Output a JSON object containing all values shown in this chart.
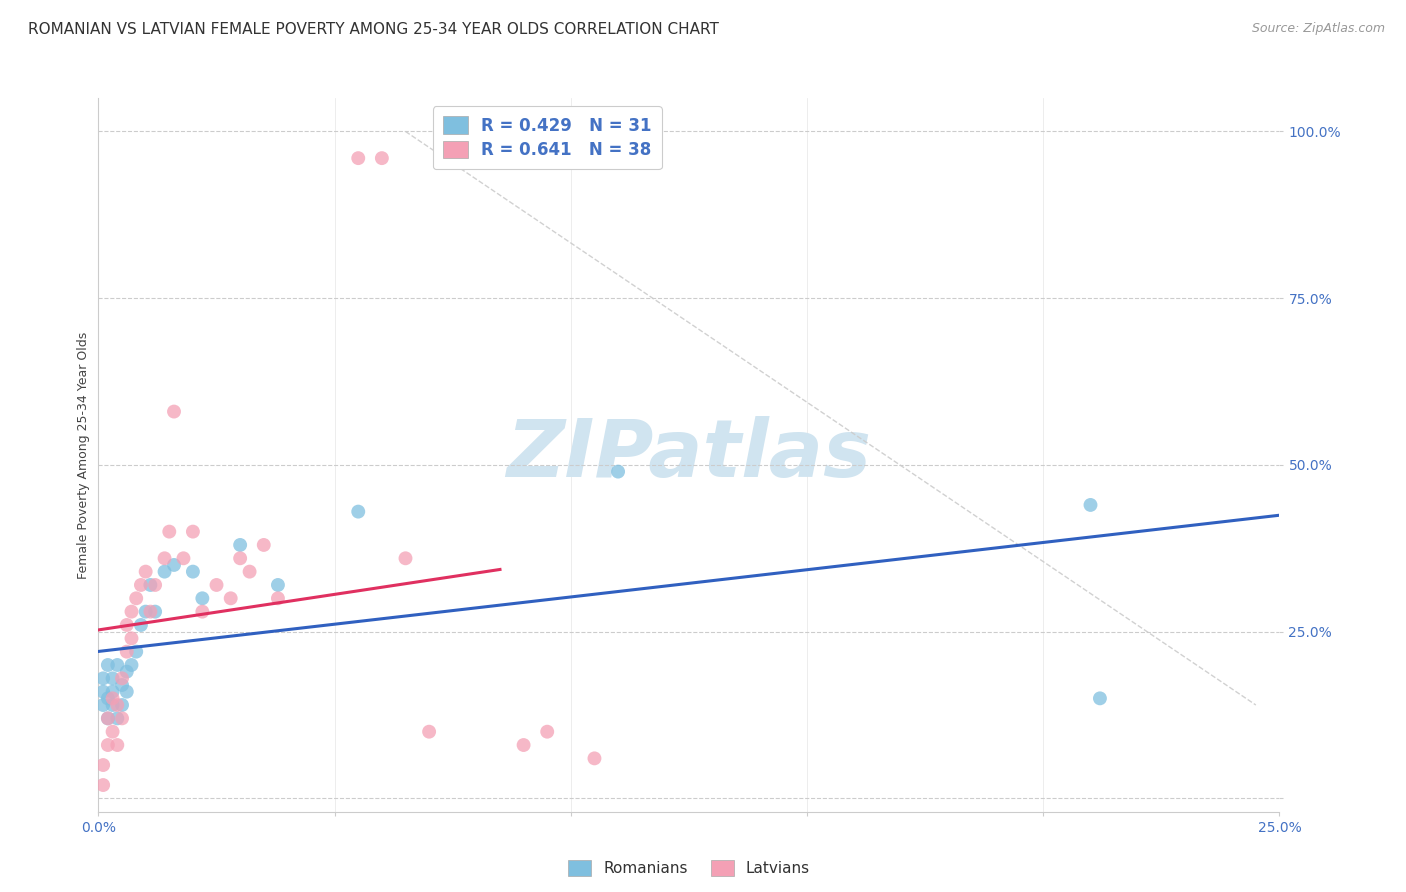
{
  "title": "ROMANIAN VS LATVIAN FEMALE POVERTY AMONG 25-34 YEAR OLDS CORRELATION CHART",
  "source": "Source: ZipAtlas.com",
  "ylabel": "Female Poverty Among 25-34 Year Olds",
  "xlim": [
    0.0,
    0.25
  ],
  "ylim": [
    -0.02,
    1.05
  ],
  "xticks": [
    0.0,
    0.05,
    0.1,
    0.15,
    0.2,
    0.25
  ],
  "yticks": [
    0.0,
    0.25,
    0.5,
    0.75,
    1.0
  ],
  "xticklabels": [
    "0.0%",
    "",
    "",
    "",
    "",
    "25.0%"
  ],
  "yticklabels": [
    "",
    "25.0%",
    "50.0%",
    "75.0%",
    "100.0%"
  ],
  "romanians_x": [
    0.001,
    0.001,
    0.001,
    0.002,
    0.002,
    0.002,
    0.003,
    0.003,
    0.003,
    0.004,
    0.004,
    0.005,
    0.005,
    0.006,
    0.006,
    0.007,
    0.008,
    0.009,
    0.01,
    0.011,
    0.012,
    0.014,
    0.016,
    0.02,
    0.022,
    0.03,
    0.038,
    0.055,
    0.11,
    0.21,
    0.212
  ],
  "romanians_y": [
    0.14,
    0.16,
    0.18,
    0.12,
    0.15,
    0.2,
    0.14,
    0.16,
    0.18,
    0.12,
    0.2,
    0.14,
    0.17,
    0.16,
    0.19,
    0.2,
    0.22,
    0.26,
    0.28,
    0.32,
    0.28,
    0.34,
    0.35,
    0.34,
    0.3,
    0.38,
    0.32,
    0.43,
    0.49,
    0.44,
    0.15
  ],
  "latvians_x": [
    0.001,
    0.001,
    0.002,
    0.002,
    0.003,
    0.003,
    0.004,
    0.004,
    0.005,
    0.005,
    0.006,
    0.006,
    0.007,
    0.007,
    0.008,
    0.009,
    0.01,
    0.011,
    0.012,
    0.014,
    0.015,
    0.016,
    0.018,
    0.02,
    0.022,
    0.025,
    0.028,
    0.03,
    0.032,
    0.035,
    0.038,
    0.055,
    0.06,
    0.065,
    0.07,
    0.09,
    0.095,
    0.105
  ],
  "latvians_y": [
    0.02,
    0.05,
    0.08,
    0.12,
    0.1,
    0.15,
    0.08,
    0.14,
    0.12,
    0.18,
    0.22,
    0.26,
    0.24,
    0.28,
    0.3,
    0.32,
    0.34,
    0.28,
    0.32,
    0.36,
    0.4,
    0.58,
    0.36,
    0.4,
    0.28,
    0.32,
    0.3,
    0.36,
    0.34,
    0.38,
    0.3,
    0.96,
    0.96,
    0.36,
    0.1,
    0.08,
    0.1,
    0.06
  ],
  "romanian_R": 0.429,
  "romanian_N": 31,
  "latvian_R": 0.641,
  "latvian_N": 38,
  "blue_color": "#7fbfdf",
  "pink_color": "#f4a0b5",
  "blue_line_color": "#3060c0",
  "pink_line_color": "#e03060",
  "tick_color": "#4472c4",
  "watermark_text": "ZIPatlas",
  "watermark_color": "#d0e4f0",
  "title_fontsize": 11,
  "axis_label_fontsize": 9,
  "tick_fontsize": 10,
  "source_fontsize": 9,
  "marker_size": 100,
  "background_color": "#ffffff",
  "grid_color": "#cccccc"
}
